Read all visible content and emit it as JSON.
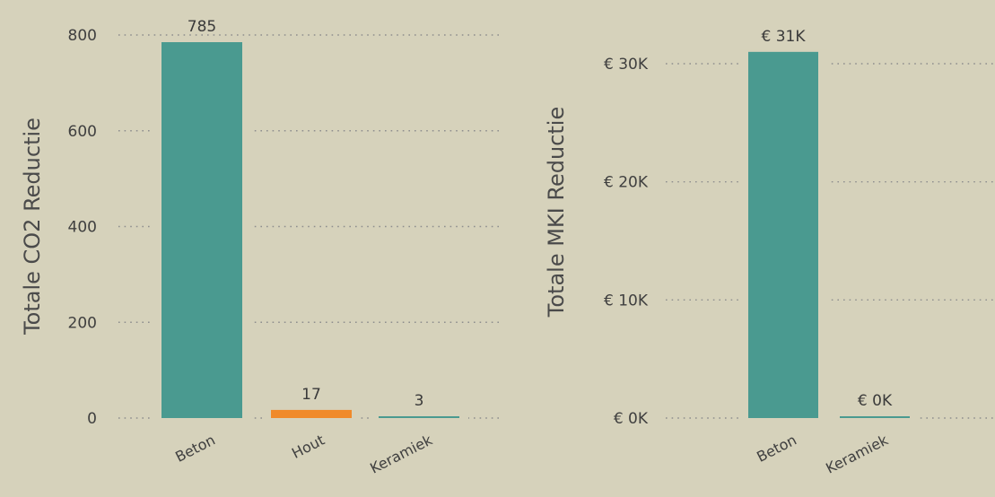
{
  "chart_data": [
    {
      "type": "bar",
      "ylabel": "Totale CO2 Reductie",
      "categories": [
        "Beton",
        "Hout",
        "Keramiek"
      ],
      "values": [
        785,
        17,
        3
      ],
      "data_labels": [
        "785",
        "17",
        "3"
      ],
      "colors": [
        "#4a9a90",
        "#f08a2a",
        "#4a9a90"
      ],
      "ylim": [
        0,
        800
      ],
      "yticks": [
        0,
        200,
        400,
        600,
        800
      ],
      "ytick_labels": [
        "0",
        "200",
        "400",
        "600",
        "800"
      ],
      "grid": true
    },
    {
      "type": "bar",
      "ylabel": "Totale MKI Reductie",
      "categories": [
        "Beton",
        "Keramiek"
      ],
      "values": [
        31000,
        0
      ],
      "data_labels": [
        "€ 31K",
        "€ 0K"
      ],
      "colors": [
        "#4a9a90",
        "#4a9a90"
      ],
      "ylim": [
        0,
        30000
      ],
      "yticks": [
        0,
        10000,
        20000,
        30000
      ],
      "ytick_labels": [
        "€ 0K",
        "€ 10K",
        "€ 20K",
        "€ 30K"
      ],
      "grid": true
    }
  ]
}
